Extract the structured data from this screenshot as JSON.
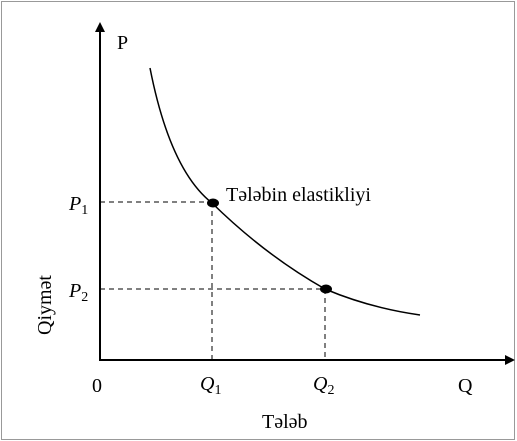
{
  "axes": {
    "y_label": "P",
    "x_label": "Q",
    "origin": "0",
    "y_title": "Qiymət",
    "x_title": "Tələb"
  },
  "points": [
    {
      "price": {
        "letter": "P",
        "sub": "1"
      },
      "quantity": {
        "letter": "Q",
        "sub": "1"
      }
    },
    {
      "price": {
        "letter": "P",
        "sub": "2"
      },
      "quantity": {
        "letter": "Q",
        "sub": "2"
      }
    }
  ],
  "curve_label": "Tələbin elastikliyi"
}
